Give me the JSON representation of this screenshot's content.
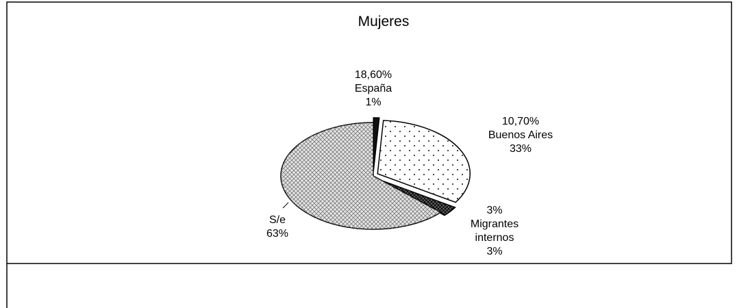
{
  "chart_data": {
    "type": "pie",
    "title": "Mujeres",
    "categories": [
      "España",
      "Buenos Aires",
      "Migrantes internos",
      "S/e"
    ],
    "values": [
      1,
      33,
      3,
      63
    ],
    "value_labels": [
      "1%",
      "33%",
      "3%",
      "63%"
    ],
    "annotations": [
      "18,60%",
      "10,70%",
      "3%"
    ],
    "colors": [
      "#111111",
      "#ffffff",
      "#666666",
      "#e6e6e6"
    ]
  }
}
